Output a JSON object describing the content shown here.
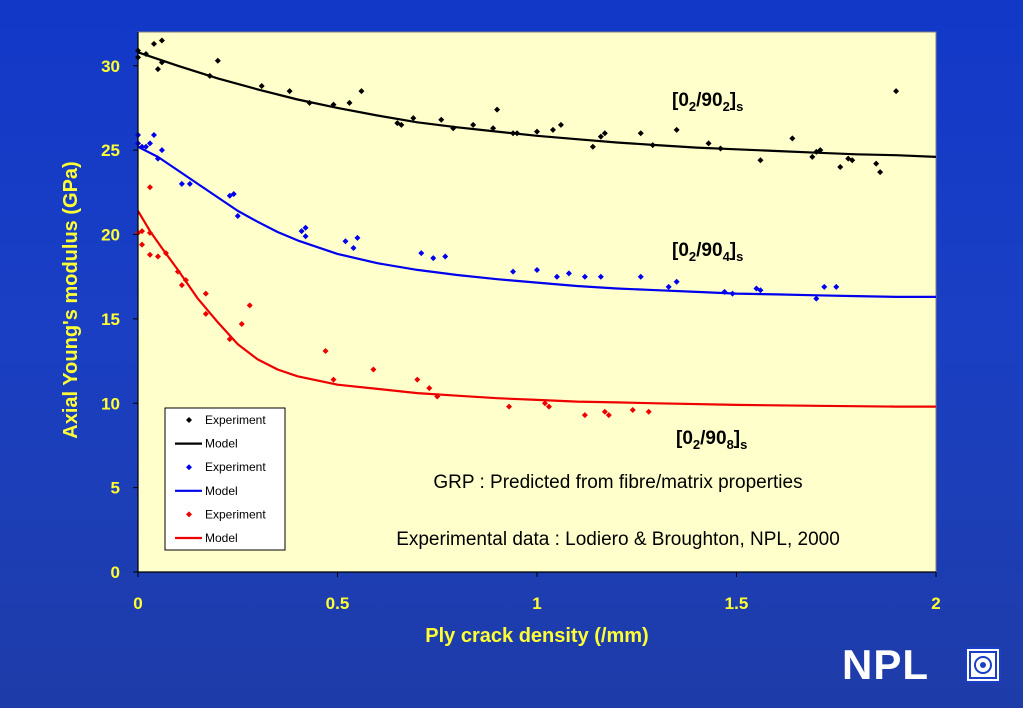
{
  "chart_data": {
    "type": "scatter",
    "title": "",
    "xlabel": "Ply crack density (/mm)",
    "ylabel": "Axial Young's modulus (GPa)",
    "xlim": [
      0,
      2
    ],
    "ylim": [
      0,
      32
    ],
    "xticks": [
      0,
      0.5,
      1,
      1.5,
      2
    ],
    "xtick_labels": [
      "0",
      "0.5",
      "1",
      "1.5",
      "2"
    ],
    "yticks": [
      0,
      5,
      10,
      15,
      20,
      25,
      30
    ],
    "ytick_labels": [
      "0",
      "5",
      "10",
      "15",
      "20",
      "25",
      "30"
    ],
    "grid": false,
    "legend_position": "bottom-left",
    "legend": [
      {
        "label": "Experiment",
        "kind": "marker",
        "color": "#000000"
      },
      {
        "label": "Model",
        "kind": "line",
        "color": "#000000"
      },
      {
        "label": "Experiment",
        "kind": "marker",
        "color": "#0000ee"
      },
      {
        "label": "Model",
        "kind": "line",
        "color": "#0000ee"
      },
      {
        "label": "Experiment",
        "kind": "marker",
        "color": "#ee0000"
      },
      {
        "label": "Model",
        "kind": "line",
        "color": "#ee0000"
      }
    ],
    "annotations": [
      "GRP : Predicted from fibre/matrix properties",
      "Experimental data : Lodiero & Broughton, NPL, 2000"
    ],
    "series": [
      {
        "layup": {
          "a": "[0",
          "s1": "2",
          "b": "/90",
          "s2": "2",
          "c": "]",
          "s3": "s"
        },
        "color": "#000000",
        "experiment": [
          [
            0.0,
            30.9
          ],
          [
            0.0,
            30.5
          ],
          [
            0.02,
            30.7
          ],
          [
            0.04,
            31.3
          ],
          [
            0.05,
            29.8
          ],
          [
            0.06,
            30.2
          ],
          [
            0.06,
            31.5
          ],
          [
            0.18,
            29.4
          ],
          [
            0.2,
            30.3
          ],
          [
            0.31,
            28.8
          ],
          [
            0.38,
            28.5
          ],
          [
            0.43,
            27.8
          ],
          [
            0.49,
            27.7
          ],
          [
            0.53,
            27.8
          ],
          [
            0.56,
            28.5
          ],
          [
            0.65,
            26.6
          ],
          [
            0.66,
            26.5
          ],
          [
            0.69,
            26.9
          ],
          [
            0.76,
            26.8
          ],
          [
            0.79,
            26.3
          ],
          [
            0.84,
            26.5
          ],
          [
            0.89,
            26.3
          ],
          [
            0.9,
            27.4
          ],
          [
            0.94,
            26.0
          ],
          [
            0.95,
            26.0
          ],
          [
            1.0,
            26.1
          ],
          [
            1.04,
            26.2
          ],
          [
            1.06,
            26.5
          ],
          [
            1.14,
            25.2
          ],
          [
            1.16,
            25.8
          ],
          [
            1.17,
            26.0
          ],
          [
            1.26,
            26.0
          ],
          [
            1.29,
            25.3
          ],
          [
            1.35,
            26.2
          ],
          [
            1.43,
            25.4
          ],
          [
            1.46,
            25.1
          ],
          [
            1.56,
            24.4
          ],
          [
            1.64,
            25.7
          ],
          [
            1.69,
            24.6
          ],
          [
            1.7,
            24.9
          ],
          [
            1.71,
            25.0
          ],
          [
            1.76,
            24.0
          ],
          [
            1.78,
            24.5
          ],
          [
            1.79,
            24.4
          ],
          [
            1.85,
            24.2
          ],
          [
            1.86,
            23.7
          ],
          [
            1.9,
            28.5
          ]
        ],
        "model": [
          [
            0.0,
            30.8
          ],
          [
            0.1,
            30.0
          ],
          [
            0.2,
            29.25
          ],
          [
            0.3,
            28.6
          ],
          [
            0.4,
            28.0
          ],
          [
            0.5,
            27.5
          ],
          [
            0.6,
            27.05
          ],
          [
            0.7,
            26.65
          ],
          [
            0.8,
            26.35
          ],
          [
            0.9,
            26.1
          ],
          [
            1.0,
            25.85
          ],
          [
            1.1,
            25.65
          ],
          [
            1.2,
            25.45
          ],
          [
            1.3,
            25.3
          ],
          [
            1.4,
            25.15
          ],
          [
            1.5,
            25.05
          ],
          [
            1.6,
            24.95
          ],
          [
            1.7,
            24.85
          ],
          [
            1.8,
            24.75
          ],
          [
            1.9,
            24.7
          ],
          [
            2.0,
            24.6
          ]
        ]
      },
      {
        "layup": {
          "a": "[0",
          "s1": "2",
          "b": "/90",
          "s2": "4",
          "c": "]",
          "s3": "s"
        },
        "color": "#0000ee",
        "experiment": [
          [
            0.0,
            25.9
          ],
          [
            0.0,
            25.4
          ],
          [
            0.01,
            25.2
          ],
          [
            0.02,
            25.2
          ],
          [
            0.03,
            25.4
          ],
          [
            0.04,
            25.9
          ],
          [
            0.05,
            24.5
          ],
          [
            0.06,
            25.0
          ],
          [
            0.11,
            23.0
          ],
          [
            0.13,
            23.0
          ],
          [
            0.23,
            22.3
          ],
          [
            0.24,
            22.4
          ],
          [
            0.25,
            21.1
          ],
          [
            0.41,
            20.2
          ],
          [
            0.42,
            20.4
          ],
          [
            0.42,
            19.9
          ],
          [
            0.52,
            19.6
          ],
          [
            0.54,
            19.2
          ],
          [
            0.55,
            19.8
          ],
          [
            0.71,
            18.9
          ],
          [
            0.74,
            18.6
          ],
          [
            0.77,
            18.7
          ],
          [
            0.94,
            17.8
          ],
          [
            1.0,
            17.9
          ],
          [
            1.05,
            17.5
          ],
          [
            1.08,
            17.7
          ],
          [
            1.12,
            17.5
          ],
          [
            1.16,
            17.5
          ],
          [
            1.26,
            17.5
          ],
          [
            1.33,
            16.9
          ],
          [
            1.35,
            17.2
          ],
          [
            1.47,
            16.6
          ],
          [
            1.49,
            16.5
          ],
          [
            1.55,
            16.8
          ],
          [
            1.56,
            16.7
          ],
          [
            1.7,
            16.2
          ],
          [
            1.72,
            16.9
          ],
          [
            1.75,
            16.9
          ]
        ],
        "model": [
          [
            0.0,
            25.2
          ],
          [
            0.05,
            24.6
          ],
          [
            0.1,
            23.8
          ],
          [
            0.15,
            23.0
          ],
          [
            0.2,
            22.2
          ],
          [
            0.25,
            21.4
          ],
          [
            0.3,
            20.75
          ],
          [
            0.35,
            20.15
          ],
          [
            0.4,
            19.65
          ],
          [
            0.5,
            18.85
          ],
          [
            0.6,
            18.3
          ],
          [
            0.7,
            17.9
          ],
          [
            0.8,
            17.6
          ],
          [
            0.9,
            17.35
          ],
          [
            1.0,
            17.15
          ],
          [
            1.1,
            16.95
          ],
          [
            1.2,
            16.8
          ],
          [
            1.3,
            16.7
          ],
          [
            1.4,
            16.6
          ],
          [
            1.5,
            16.5
          ],
          [
            1.6,
            16.45
          ],
          [
            1.7,
            16.4
          ],
          [
            1.8,
            16.35
          ],
          [
            1.9,
            16.3
          ],
          [
            2.0,
            16.3
          ]
        ]
      },
      {
        "layup": {
          "a": "[0",
          "s1": "2",
          "b": "/90",
          "s2": "8",
          "c": "]",
          "s3": "s"
        },
        "color": "#ee0000",
        "experiment": [
          [
            0.0,
            20.1
          ],
          [
            0.01,
            19.4
          ],
          [
            0.01,
            20.2
          ],
          [
            0.03,
            20.1
          ],
          [
            0.03,
            22.8
          ],
          [
            0.03,
            18.8
          ],
          [
            0.05,
            18.7
          ],
          [
            0.07,
            18.9
          ],
          [
            0.1,
            17.8
          ],
          [
            0.11,
            17.0
          ],
          [
            0.12,
            17.3
          ],
          [
            0.17,
            15.3
          ],
          [
            0.17,
            16.5
          ],
          [
            0.23,
            13.8
          ],
          [
            0.26,
            14.7
          ],
          [
            0.28,
            15.8
          ],
          [
            0.47,
            13.1
          ],
          [
            0.49,
            11.4
          ],
          [
            0.59,
            12.0
          ],
          [
            0.7,
            11.4
          ],
          [
            0.73,
            10.9
          ],
          [
            0.75,
            10.4
          ],
          [
            0.93,
            9.8
          ],
          [
            1.02,
            10.0
          ],
          [
            1.03,
            9.8
          ],
          [
            1.12,
            9.3
          ],
          [
            1.17,
            9.5
          ],
          [
            1.18,
            9.3
          ],
          [
            1.24,
            9.6
          ],
          [
            1.28,
            9.5
          ]
        ],
        "model": [
          [
            0.0,
            21.4
          ],
          [
            0.03,
            20.2
          ],
          [
            0.06,
            19.2
          ],
          [
            0.1,
            17.9
          ],
          [
            0.15,
            16.2
          ],
          [
            0.2,
            14.8
          ],
          [
            0.25,
            13.5
          ],
          [
            0.3,
            12.6
          ],
          [
            0.35,
            12.0
          ],
          [
            0.4,
            11.6
          ],
          [
            0.5,
            11.1
          ],
          [
            0.6,
            10.85
          ],
          [
            0.7,
            10.6
          ],
          [
            0.8,
            10.45
          ],
          [
            0.9,
            10.3
          ],
          [
            1.0,
            10.2
          ],
          [
            1.1,
            10.1
          ],
          [
            1.2,
            10.05
          ],
          [
            1.3,
            10.0
          ],
          [
            1.5,
            9.9
          ],
          [
            1.7,
            9.85
          ],
          [
            1.9,
            9.8
          ],
          [
            2.0,
            9.8
          ]
        ]
      }
    ]
  },
  "logo": {
    "text": "NPL"
  }
}
